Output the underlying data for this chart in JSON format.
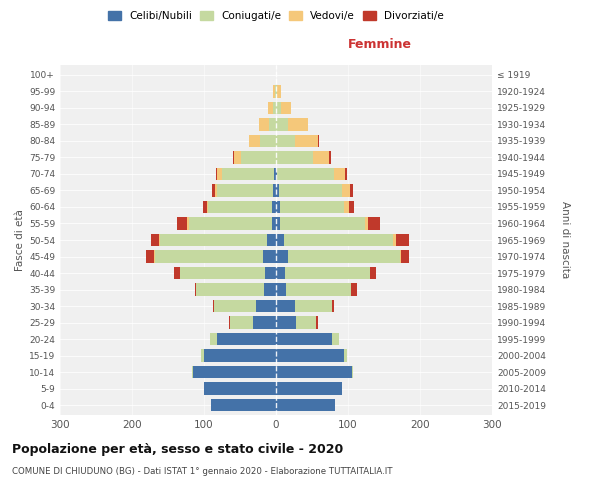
{
  "age_groups": [
    "0-4",
    "5-9",
    "10-14",
    "15-19",
    "20-24",
    "25-29",
    "30-34",
    "35-39",
    "40-44",
    "45-49",
    "50-54",
    "55-59",
    "60-64",
    "65-69",
    "70-74",
    "75-79",
    "80-84",
    "85-89",
    "90-94",
    "95-99",
    "100+"
  ],
  "birth_years": [
    "2015-2019",
    "2010-2014",
    "2005-2009",
    "2000-2004",
    "1995-1999",
    "1990-1994",
    "1985-1989",
    "1980-1984",
    "1975-1979",
    "1970-1974",
    "1965-1969",
    "1960-1964",
    "1955-1959",
    "1950-1954",
    "1945-1949",
    "1940-1944",
    "1935-1939",
    "1930-1934",
    "1925-1929",
    "1920-1924",
    "≤ 1919"
  ],
  "male_celibi": [
    90,
    100,
    115,
    100,
    82,
    32,
    28,
    16,
    15,
    18,
    13,
    6,
    6,
    4,
    3,
    0,
    0,
    0,
    0,
    0,
    0
  ],
  "male_coniugati": [
    0,
    0,
    2,
    4,
    10,
    32,
    58,
    95,
    118,
    150,
    148,
    115,
    88,
    78,
    72,
    48,
    22,
    10,
    4,
    2,
    0
  ],
  "male_vedovi": [
    0,
    0,
    0,
    0,
    0,
    0,
    0,
    0,
    0,
    2,
    2,
    2,
    2,
    3,
    7,
    10,
    16,
    14,
    7,
    2,
    0
  ],
  "male_divorziati": [
    0,
    0,
    0,
    0,
    0,
    1,
    2,
    2,
    9,
    11,
    11,
    14,
    6,
    4,
    2,
    2,
    0,
    0,
    0,
    0,
    0
  ],
  "female_nubili": [
    82,
    92,
    105,
    95,
    78,
    28,
    26,
    14,
    12,
    17,
    11,
    6,
    6,
    4,
    2,
    0,
    0,
    0,
    0,
    0,
    0
  ],
  "female_coniugate": [
    0,
    0,
    2,
    4,
    10,
    28,
    52,
    90,
    118,
    155,
    152,
    118,
    88,
    88,
    78,
    52,
    26,
    17,
    7,
    2,
    0
  ],
  "female_vedove": [
    0,
    0,
    0,
    0,
    0,
    0,
    0,
    0,
    0,
    2,
    3,
    4,
    7,
    11,
    16,
    22,
    33,
    28,
    14,
    5,
    0
  ],
  "female_divorziate": [
    0,
    0,
    0,
    0,
    0,
    2,
    2,
    9,
    9,
    11,
    19,
    16,
    7,
    4,
    2,
    2,
    1,
    0,
    0,
    0,
    0
  ],
  "colors": {
    "celibi": "#4472a8",
    "coniugati": "#c5d9a0",
    "vedovi": "#f5c87a",
    "divorziati": "#c0392b"
  },
  "xlim": 300,
  "title": "Popolazione per età, sesso e stato civile - 2020",
  "subtitle": "COMUNE DI CHIUDUNO (BG) - Dati ISTAT 1° gennaio 2020 - Elaborazione TUTTAITALIA.IT",
  "ylabel_left": "Fasce di età",
  "ylabel_right": "Anni di nascita",
  "xlabel_right": "Femmine",
  "bg_color": "#f0f0f0"
}
